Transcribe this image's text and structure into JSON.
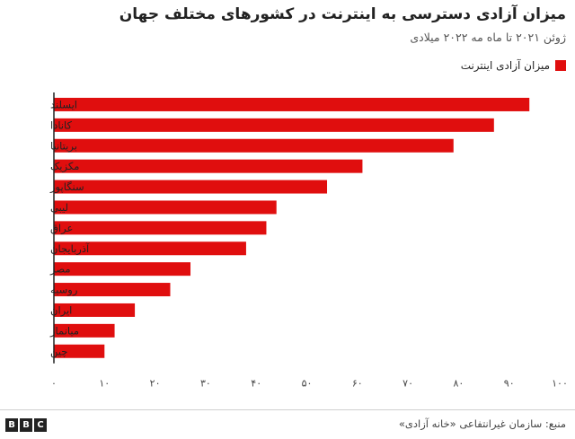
{
  "header": {
    "title": "میزان آزادی دسترسی به اینترنت در کشورهای مختلف جهان",
    "subtitle": "ژوئن ۲۰۲۱ تا ماه مه ۲۰۲۲ میلادی"
  },
  "colors": {
    "bar": "#e00e0e",
    "axis": "#222222",
    "text": "#222222"
  },
  "chart_data": {
    "type": "bar",
    "orientation": "horizontal",
    "title": "میزان آزادی دسترسی به اینترنت در کشورهای مختلف جهان",
    "subtitle": "ژوئن ۲۰۲۱ تا ماه مه ۲۰۲۲ میلادی",
    "categories": [
      "ایسلند",
      "کانادا",
      "بریتانیا",
      "مکزیک",
      "سنگاپور",
      "لیبی",
      "عراق",
      "آذربایجان",
      "مصر",
      "روسیه",
      "ایران",
      "میانمار",
      "چین"
    ],
    "series": [
      {
        "name": "میزان آزادی اینترنت",
        "values": [
          94,
          87,
          79,
          61,
          54,
          44,
          42,
          38,
          27,
          23,
          16,
          12,
          10
        ]
      }
    ],
    "xlim": [
      0,
      100
    ],
    "x_ticks": [
      0,
      10,
      20,
      30,
      40,
      50,
      60,
      70,
      80,
      90,
      100
    ],
    "x_tick_labels": [
      "۰",
      "۱۰",
      "۲۰",
      "۳۰",
      "۴۰",
      "۵۰",
      "۶۰",
      "۷۰",
      "۸۰",
      "۹۰",
      "۱۰۰"
    ],
    "legend_position": "top-right",
    "grid": false
  },
  "footer": {
    "logo": [
      "B",
      "B",
      "C"
    ],
    "source": "منبع: سازمان غیرانتفاعی «خانه آزادی»"
  }
}
